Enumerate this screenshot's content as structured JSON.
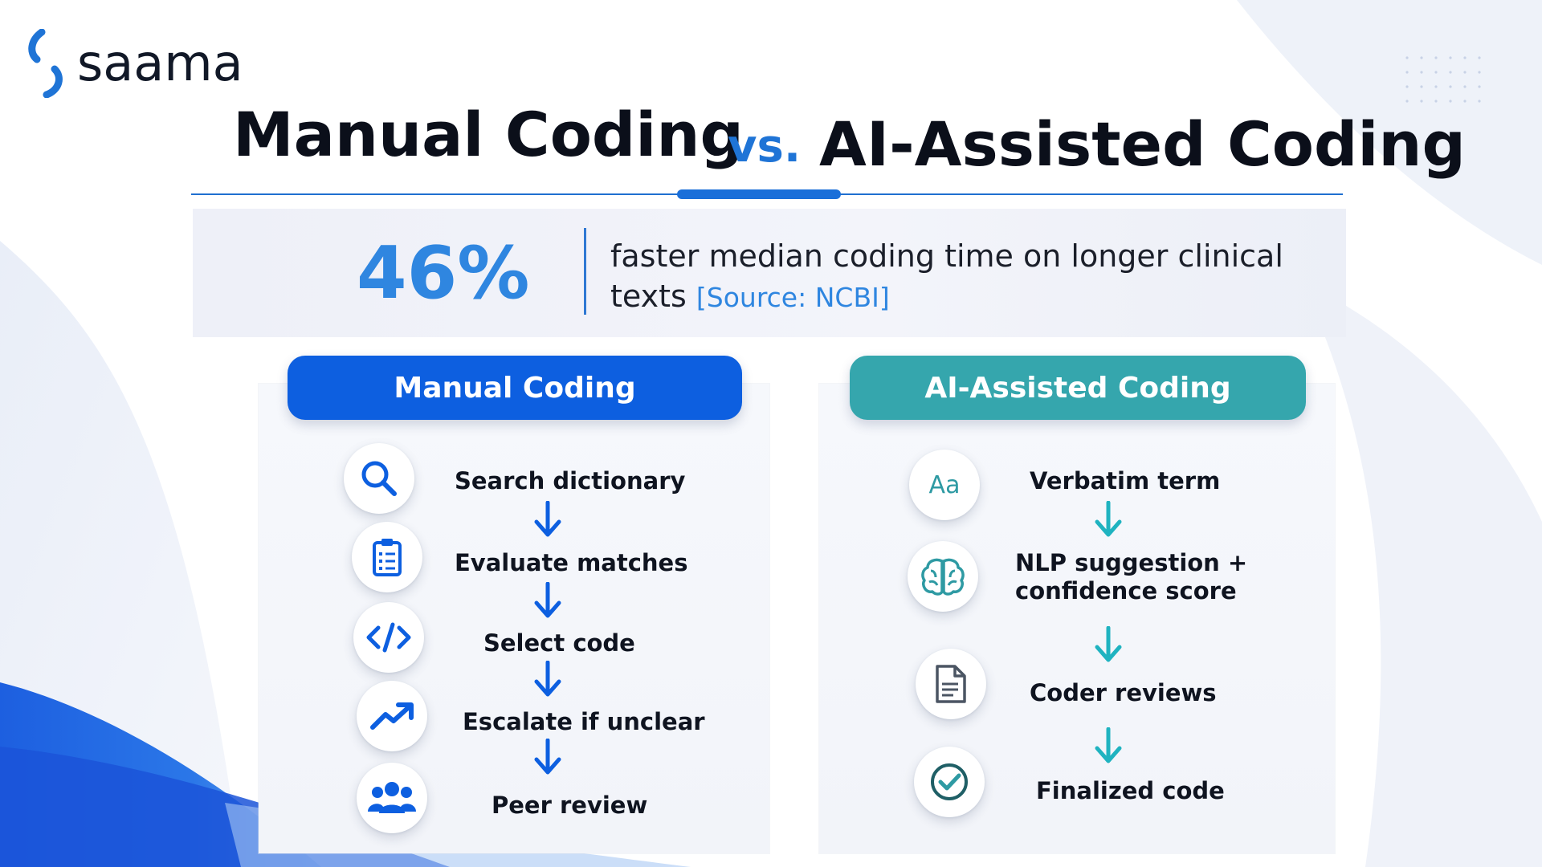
{
  "brand": {
    "name": "saama",
    "logo_color": "#1f74d6"
  },
  "header": {
    "title_left": "Manual Coding",
    "vs": "vs.",
    "title_right": "AI-Assisted Coding"
  },
  "stat": {
    "value": "46%",
    "text": "faster median coding time on longer clinical texts",
    "source": "[Source: NCBI]"
  },
  "manual": {
    "heading": "Manual Coding",
    "color": "#0d5fe0",
    "steps": [
      {
        "label": "Search dictionary",
        "icon": "search-icon"
      },
      {
        "label": "Evaluate matches",
        "icon": "clipboard-checklist-icon"
      },
      {
        "label": "Select code",
        "icon": "code-brackets-icon"
      },
      {
        "label": "Escalate if unclear",
        "icon": "trending-up-icon"
      },
      {
        "label": "Peer review",
        "icon": "users-group-icon"
      }
    ]
  },
  "ai": {
    "heading": "AI-Assisted Coding",
    "color": "#35a6ad",
    "steps": [
      {
        "label": "Verbatim term",
        "icon": "text-aa-icon",
        "icon_text": "Aa"
      },
      {
        "label_line1": "NLP suggestion +",
        "label_line2": "confidence score",
        "icon": "brain-icon"
      },
      {
        "label": "Coder reviews",
        "icon": "document-icon"
      },
      {
        "label": "Finalized code",
        "icon": "check-circle-icon"
      }
    ]
  }
}
